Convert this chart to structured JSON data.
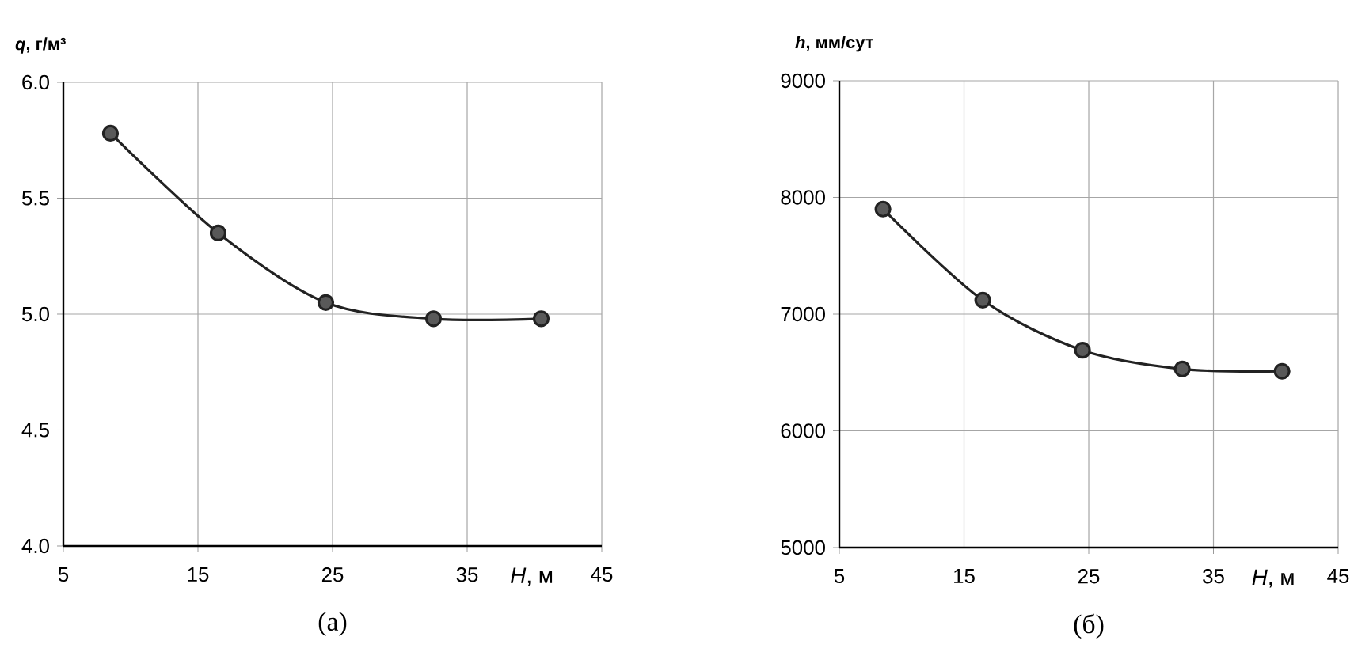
{
  "chart_data": [
    {
      "type": "line",
      "xlabel": "*H*, м",
      "ylabel": "*q*, г/м³",
      "annotations": [
        "(а)"
      ],
      "x": [
        8.5,
        16.5,
        24.5,
        32.5,
        40.5
      ],
      "series": [
        {
          "color": "#222222",
          "values": [
            5.78,
            5.35,
            5.05,
            4.98,
            4.98
          ]
        }
      ],
      "xlim": [
        5,
        45
      ],
      "xticks": [
        5,
        15,
        25,
        35,
        45
      ],
      "ylim": [
        4.0,
        6.0
      ],
      "yticks": [
        {
          "value": 4.0,
          "label": "4.0"
        },
        {
          "value": 4.5,
          "label": "4.5"
        },
        {
          "value": 5.0,
          "label": "5.0"
        },
        {
          "value": 5.5,
          "label": "5.5"
        },
        {
          "value": 6.0,
          "label": "6.0"
        }
      ],
      "grid": true,
      "marker": "circle",
      "line_style": "solid"
    },
    {
      "type": "line",
      "xlabel": "*H*, м",
      "ylabel": "*h*, мм/сут",
      "annotations": [
        "(б)"
      ],
      "x": [
        8.5,
        16.5,
        24.5,
        32.5,
        40.5
      ],
      "series": [
        {
          "color": "#222222",
          "values": [
            7900,
            7120,
            6690,
            6530,
            6510
          ]
        }
      ],
      "xlim": [
        5,
        45
      ],
      "xticks": [
        5,
        15,
        25,
        35,
        45
      ],
      "ylim": [
        5000,
        9000
      ],
      "yticks": [
        5000,
        6000,
        7000,
        8000,
        9000
      ],
      "grid": true,
      "marker": "circle",
      "line_style": "solid"
    }
  ]
}
